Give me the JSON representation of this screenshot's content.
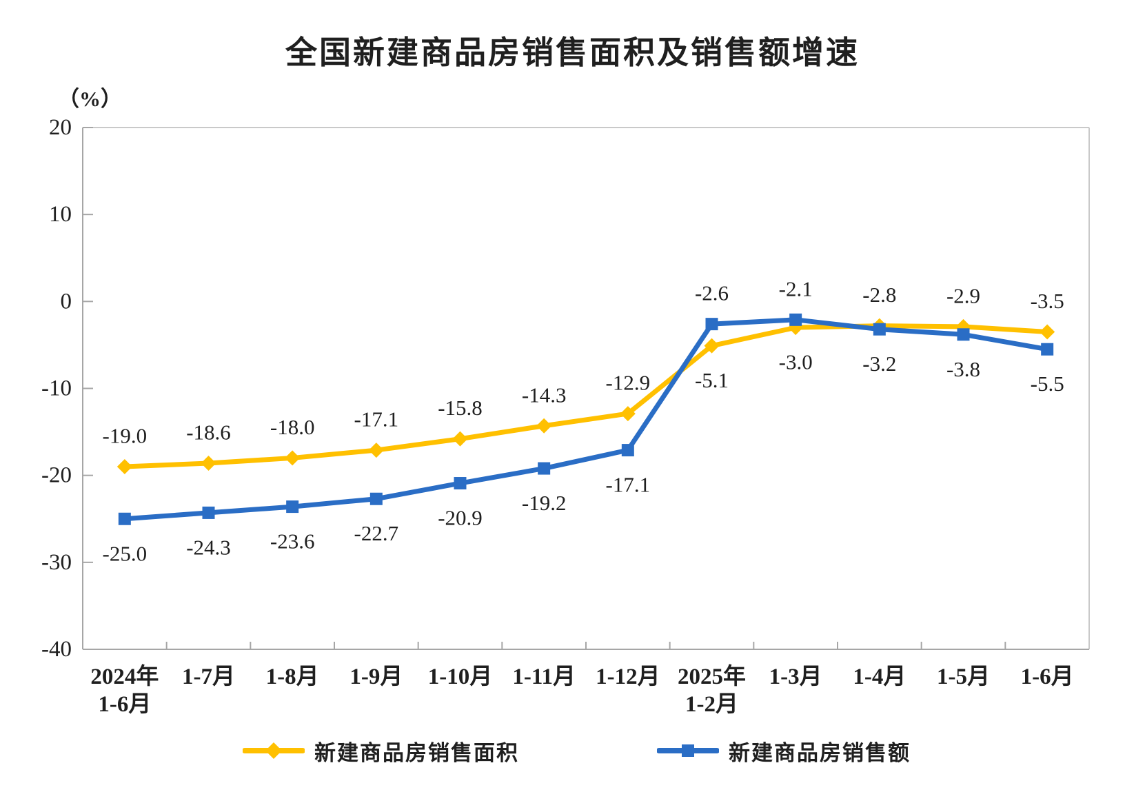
{
  "chart_data": {
    "type": "line",
    "title": "全国新建商品房销售面积及销售额增速",
    "unit_label": "（%）",
    "categories": [
      "2024年\n1-6月",
      "1-7月",
      "1-8月",
      "1-9月",
      "1-10月",
      "1-11月",
      "1-12月",
      "2025年\n1-2月",
      "1-3月",
      "1-4月",
      "1-5月",
      "1-6月"
    ],
    "series": [
      {
        "name": "新建商品房销售面积",
        "marker": "diamond",
        "color": "#FFC000",
        "values": [
          -19.0,
          -18.6,
          -18.0,
          -17.1,
          -15.8,
          -14.3,
          -12.9,
          -5.1,
          -3.0,
          -2.8,
          -2.9,
          -3.5
        ]
      },
      {
        "name": "新建商品房销售额",
        "marker": "square",
        "color": "#2A6DC5",
        "values": [
          -25.0,
          -24.3,
          -23.6,
          -22.7,
          -20.9,
          -19.2,
          -17.1,
          -2.6,
          -2.1,
          -3.2,
          -3.8,
          -5.5
        ]
      }
    ],
    "ylim": [
      -40,
      20
    ],
    "yticks": [
      20,
      10,
      0,
      -10,
      -20,
      -30,
      -40
    ],
    "grid": false,
    "legend_position": "bottom",
    "axis_color": "#A6A6A6",
    "border_color": "#C9C9C9",
    "text_color": "#1F1F1F"
  }
}
